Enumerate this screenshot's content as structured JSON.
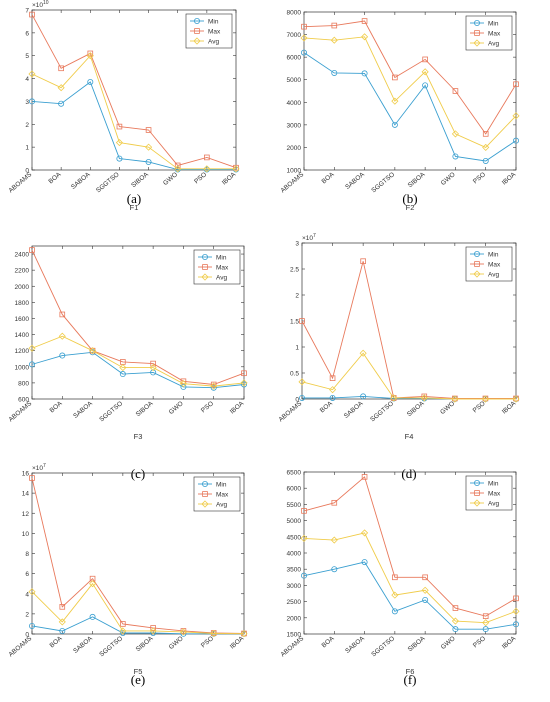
{
  "figure": {
    "colors": {
      "min": "#3a9fd0",
      "max": "#e8795c",
      "avg": "#f0cc4a"
    }
  },
  "chart_data": [
    {
      "type": "line",
      "panel_label": "(a)",
      "xlabel": "F1",
      "ylabel": "",
      "exponent": "10",
      "categories": [
        "ABOAMS",
        "BOA",
        "SABOA",
        "SGGTSO",
        "SIBOA",
        "GWO",
        "PSO",
        "IBOA"
      ],
      "ylim": [
        0,
        7
      ],
      "yticks": [
        "0",
        "1",
        "2",
        "3",
        "4",
        "5",
        "6",
        "7"
      ],
      "legend_position": "top-right",
      "grid": false,
      "series": [
        {
          "name": "Min",
          "marker": "circle",
          "values": [
            3.0,
            2.9,
            3.85,
            0.5,
            0.35,
            0.02,
            0.02,
            0.02
          ]
        },
        {
          "name": "Max",
          "marker": "square",
          "values": [
            6.8,
            4.45,
            5.1,
            1.9,
            1.75,
            0.2,
            0.55,
            0.1
          ]
        },
        {
          "name": "Avg",
          "marker": "diamond",
          "values": [
            4.2,
            3.6,
            5.0,
            1.2,
            1.0,
            0.05,
            0.05,
            0.05
          ]
        }
      ]
    },
    {
      "type": "line",
      "panel_label": "(b)",
      "xlabel": "F2",
      "ylabel": "",
      "exponent": "",
      "categories": [
        "ABOAMS",
        "BOA",
        "SABOA",
        "SGGTSO",
        "SIBOA",
        "GWO",
        "PSO",
        "IBOA"
      ],
      "ylim": [
        1000,
        8000
      ],
      "yticks": [
        "1000",
        "2000",
        "3000",
        "4000",
        "5000",
        "6000",
        "7000",
        "8000"
      ],
      "legend_position": "top-right",
      "grid": false,
      "series": [
        {
          "name": "Min",
          "marker": "circle",
          "values": [
            6200,
            5300,
            5280,
            3000,
            4750,
            1600,
            1400,
            2300
          ]
        },
        {
          "name": "Max",
          "marker": "square",
          "values": [
            7350,
            7400,
            7600,
            5100,
            5900,
            4500,
            2600,
            4800
          ]
        },
        {
          "name": "Avg",
          "marker": "diamond",
          "values": [
            6850,
            6750,
            6900,
            4050,
            5350,
            2600,
            2000,
            3400
          ]
        }
      ]
    },
    {
      "type": "line",
      "panel_label": "(c)",
      "xlabel": "F3",
      "ylabel": "",
      "exponent": "",
      "categories": [
        "ABOAMS",
        "BOA",
        "SABOA",
        "SGGTSO",
        "SIBOA",
        "GWO",
        "PSO",
        "IBOA"
      ],
      "ylim": [
        600,
        2500
      ],
      "yticks": [
        "600",
        "800",
        "1000",
        "1200",
        "1400",
        "1600",
        "1800",
        "2000",
        "2200",
        "2400"
      ],
      "legend_position": "top-right",
      "grid": false,
      "series": [
        {
          "name": "Min",
          "marker": "circle",
          "values": [
            1030,
            1140,
            1180,
            910,
            930,
            750,
            740,
            780
          ]
        },
        {
          "name": "Max",
          "marker": "square",
          "values": [
            2450,
            1650,
            1200,
            1060,
            1040,
            820,
            780,
            920
          ]
        },
        {
          "name": "Avg",
          "marker": "diamond",
          "values": [
            1230,
            1380,
            1200,
            990,
            990,
            790,
            760,
            800
          ]
        }
      ]
    },
    {
      "type": "line",
      "panel_label": "(d)",
      "xlabel": "F4",
      "ylabel": "",
      "exponent": "7",
      "categories": [
        "ABOAMS",
        "BOA",
        "SABOA",
        "SGGTSO",
        "SIBOA",
        "GWO",
        "PSO",
        "IBOA"
      ],
      "ylim": [
        0,
        3
      ],
      "yticks": [
        "0",
        "0.5",
        "1",
        "1.5",
        "2",
        "2.5",
        "3"
      ],
      "legend_position": "top-right",
      "grid": false,
      "series": [
        {
          "name": "Min",
          "marker": "circle",
          "values": [
            0.02,
            0.02,
            0.05,
            0.01,
            0.01,
            0.0,
            0.0,
            0.0
          ]
        },
        {
          "name": "Max",
          "marker": "square",
          "values": [
            1.5,
            0.4,
            2.65,
            0.02,
            0.05,
            0.01,
            0.01,
            0.01
          ]
        },
        {
          "name": "Avg",
          "marker": "diamond",
          "values": [
            0.33,
            0.18,
            0.88,
            0.02,
            0.02,
            0.0,
            0.0,
            0.0
          ]
        }
      ]
    },
    {
      "type": "line",
      "panel_label": "(e)",
      "xlabel": "F5",
      "ylabel": "",
      "exponent": "7",
      "categories": [
        "ABOAMS",
        "BOA",
        "SABOA",
        "SGGTSO",
        "SIBOA",
        "GWO",
        "PSO",
        "IBOA"
      ],
      "ylim": [
        0,
        16
      ],
      "yticks": [
        "0",
        "2",
        "4",
        "6",
        "8",
        "10",
        "12",
        "14",
        "16"
      ],
      "legend_position": "top-right",
      "grid": false,
      "series": [
        {
          "name": "Min",
          "marker": "circle",
          "values": [
            0.8,
            0.3,
            1.7,
            0.1,
            0.1,
            0.02,
            0.02,
            0.02
          ]
        },
        {
          "name": "Max",
          "marker": "square",
          "values": [
            15.5,
            2.7,
            5.5,
            1.0,
            0.6,
            0.3,
            0.1,
            0.05
          ]
        },
        {
          "name": "Avg",
          "marker": "diamond",
          "values": [
            4.2,
            1.2,
            5.0,
            0.3,
            0.3,
            0.2,
            0.05,
            0.03
          ]
        }
      ]
    },
    {
      "type": "line",
      "panel_label": "(f)",
      "xlabel": "F6",
      "ylabel": "",
      "exponent": "",
      "categories": [
        "ABOAMS",
        "BOA",
        "SABOA",
        "SGGTSO",
        "SIBOA",
        "GWO",
        "PSO",
        "IBOA"
      ],
      "ylim": [
        1500,
        6500
      ],
      "yticks": [
        "1500",
        "2000",
        "2500",
        "3000",
        "3500",
        "4000",
        "4500",
        "5000",
        "5500",
        "6000",
        "6500"
      ],
      "legend_position": "top-right",
      "grid": false,
      "series": [
        {
          "name": "Min",
          "marker": "circle",
          "values": [
            3300,
            3500,
            3720,
            2200,
            2550,
            1650,
            1650,
            1800
          ]
        },
        {
          "name": "Max",
          "marker": "square",
          "values": [
            5300,
            5550,
            6350,
            3250,
            3250,
            2300,
            2050,
            2600
          ]
        },
        {
          "name": "Avg",
          "marker": "diamond",
          "values": [
            4450,
            4400,
            4620,
            2700,
            2850,
            1900,
            1850,
            2200
          ]
        }
      ]
    }
  ]
}
